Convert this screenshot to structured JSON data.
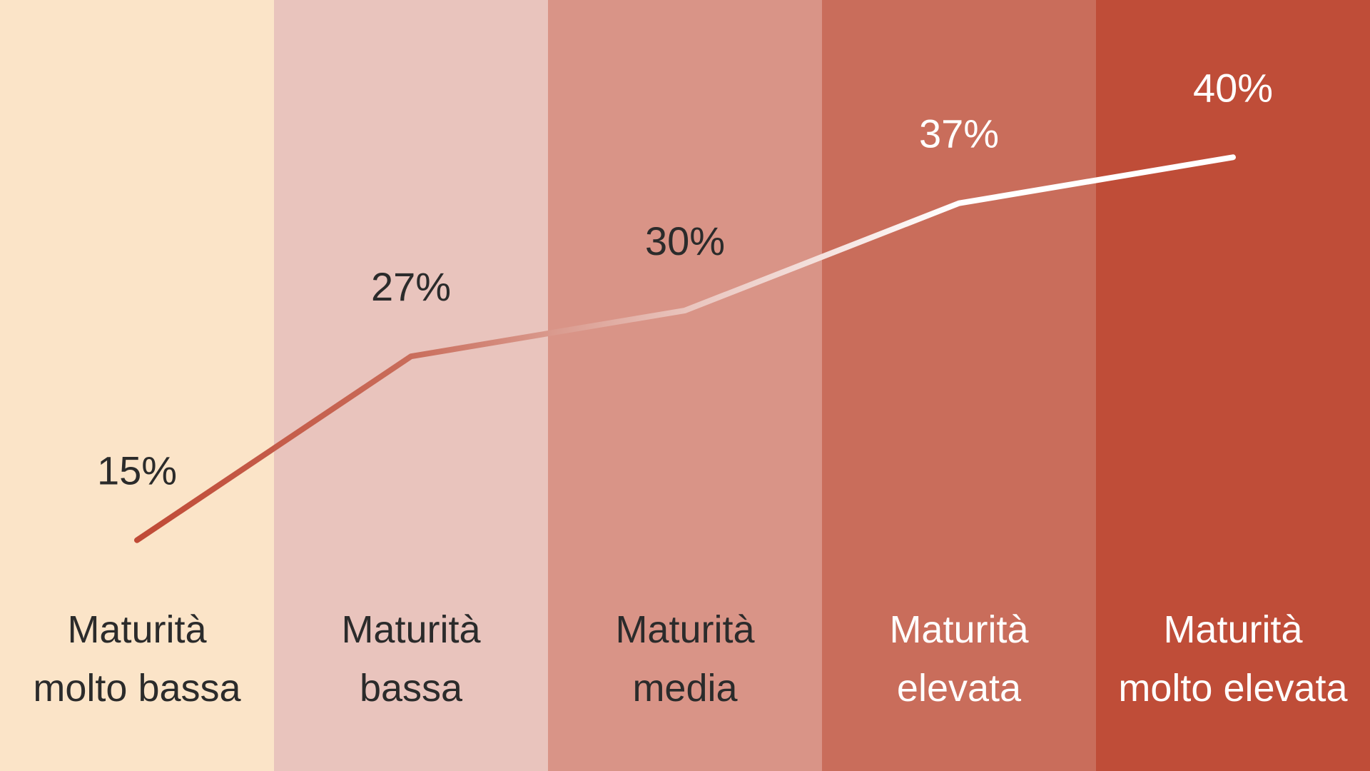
{
  "chart_data": {
    "type": "line",
    "title": "",
    "xlabel": "",
    "ylabel": "",
    "ylim": [
      10,
      45
    ],
    "grid": false,
    "categories": [
      [
        "Maturità",
        "molto bassa"
      ],
      [
        "Maturità",
        "bassa"
      ],
      [
        "Maturità",
        "media"
      ],
      [
        "Maturità",
        "elevata"
      ],
      [
        "Maturità",
        "molto elevata"
      ]
    ],
    "values": [
      15,
      27,
      30,
      37,
      40
    ],
    "value_labels": [
      "15%",
      "27%",
      "30%",
      "37%",
      "40%"
    ],
    "band_colors": [
      "#fbe4c8",
      "#e9c4bd",
      "#d99487",
      "#c96d5b",
      "#bf4d38"
    ],
    "label_colors": [
      "#2b2b2b",
      "#2b2b2b",
      "#2b2b2b",
      "#ffffff",
      "#ffffff"
    ],
    "line_gradient": [
      "#c04a36",
      "#c96d5b",
      "#e9c4bd",
      "#ffffff",
      "#ffffff"
    ]
  }
}
